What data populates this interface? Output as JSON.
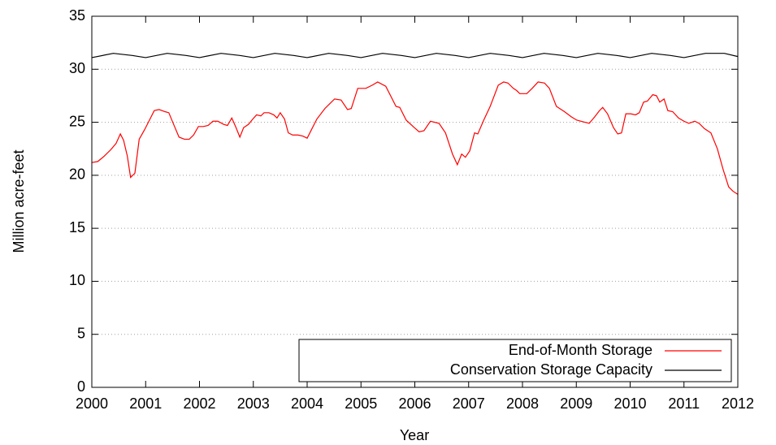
{
  "chart_data": {
    "type": "line",
    "x_label": "Year",
    "y_label": "Million acre-feet",
    "xlim": [
      2000,
      2012
    ],
    "ylim": [
      0,
      35
    ],
    "xticks": [
      2000,
      2001,
      2002,
      2003,
      2004,
      2005,
      2006,
      2007,
      2008,
      2009,
      2010,
      2011,
      2012
    ],
    "yticks": [
      0,
      5,
      10,
      15,
      20,
      25,
      30,
      35
    ],
    "grid": true,
    "legend": "bottom-right",
    "series": [
      {
        "name": "End-of-Month Storage",
        "color": "#ff0000",
        "x": [
          2000.0,
          2000.11,
          2000.23,
          2000.35,
          2000.45,
          2000.53,
          2000.59,
          2000.66,
          2000.72,
          2000.8,
          2000.88,
          2000.98,
          2001.09,
          2001.16,
          2001.25,
          2001.36,
          2001.43,
          2001.52,
          2001.62,
          2001.72,
          2001.81,
          2001.89,
          2001.98,
          2002.07,
          2002.16,
          2002.25,
          2002.34,
          2002.45,
          2002.52,
          2002.6,
          2002.67,
          2002.75,
          2002.82,
          2002.91,
          2002.99,
          2003.06,
          2003.14,
          2003.2,
          2003.29,
          2003.38,
          2003.44,
          2003.5,
          2003.58,
          2003.65,
          2003.73,
          2003.83,
          2003.92,
          2004.0,
          2004.18,
          2004.33,
          2004.51,
          2004.63,
          2004.75,
          2004.82,
          2004.94,
          2005.09,
          2005.21,
          2005.31,
          2005.46,
          2005.57,
          2005.65,
          2005.72,
          2005.84,
          2005.99,
          2006.08,
          2006.17,
          2006.29,
          2006.45,
          2006.57,
          2006.7,
          2006.79,
          2006.87,
          2006.94,
          2007.02,
          2007.11,
          2007.17,
          2007.28,
          2007.4,
          2007.55,
          2007.65,
          2007.73,
          2007.83,
          2007.89,
          2007.95,
          2008.08,
          2008.18,
          2008.29,
          2008.41,
          2008.5,
          2008.63,
          2008.78,
          2008.91,
          2009.01,
          2009.16,
          2009.24,
          2009.34,
          2009.43,
          2009.49,
          2009.58,
          2009.69,
          2009.77,
          2009.84,
          2009.92,
          2010.01,
          2010.1,
          2010.17,
          2010.25,
          2010.32,
          2010.42,
          2010.49,
          2010.55,
          2010.63,
          2010.7,
          2010.79,
          2010.9,
          2011.0,
          2011.09,
          2011.2,
          2011.28,
          2011.38,
          2011.5,
          2011.62,
          2011.73,
          2011.83,
          2011.91,
          2012.0
        ],
        "values": [
          21.2,
          21.3,
          21.8,
          22.4,
          23.0,
          23.9,
          23.3,
          21.8,
          19.8,
          20.2,
          23.4,
          24.3,
          25.4,
          26.1,
          26.2,
          26.0,
          25.9,
          24.8,
          23.6,
          23.4,
          23.4,
          23.8,
          24.6,
          24.6,
          24.7,
          25.1,
          25.1,
          24.8,
          24.7,
          25.4,
          24.6,
          23.6,
          24.5,
          24.8,
          25.3,
          25.7,
          25.6,
          25.9,
          25.9,
          25.7,
          25.4,
          25.9,
          25.3,
          24.0,
          23.8,
          23.8,
          23.7,
          23.5,
          25.3,
          26.3,
          27.2,
          27.1,
          26.2,
          26.3,
          28.2,
          28.2,
          28.5,
          28.8,
          28.4,
          27.3,
          26.5,
          26.4,
          25.2,
          24.5,
          24.1,
          24.2,
          25.1,
          24.9,
          24.0,
          22.0,
          21.0,
          22.0,
          21.7,
          22.3,
          24.0,
          23.9,
          25.2,
          26.5,
          28.5,
          28.8,
          28.7,
          28.2,
          28.0,
          27.7,
          27.7,
          28.2,
          28.8,
          28.7,
          28.2,
          26.5,
          26.0,
          25.5,
          25.2,
          25.0,
          24.9,
          25.5,
          26.1,
          26.4,
          25.8,
          24.5,
          23.9,
          24.0,
          25.8,
          25.8,
          25.7,
          25.9,
          26.9,
          27.0,
          27.6,
          27.5,
          26.9,
          27.2,
          26.1,
          26.0,
          25.4,
          25.1,
          24.9,
          25.1,
          24.9,
          24.4,
          24.0,
          22.5,
          20.5,
          18.9,
          18.5,
          18.2
        ]
      },
      {
        "name": "Conservation Storage Capacity",
        "color": "#000000",
        "x": [
          2000.0,
          2000.4,
          2000.75,
          2001.0,
          2001.4,
          2001.75,
          2002.0,
          2002.4,
          2002.75,
          2003.0,
          2003.4,
          2003.75,
          2004.0,
          2004.4,
          2004.75,
          2005.0,
          2005.4,
          2005.75,
          2006.0,
          2006.4,
          2006.75,
          2007.0,
          2007.4,
          2007.75,
          2008.0,
          2008.4,
          2008.75,
          2009.0,
          2009.4,
          2009.75,
          2010.0,
          2010.4,
          2010.75,
          2011.0,
          2011.4,
          2011.75,
          2012.0
        ],
        "values": [
          31.1,
          31.5,
          31.3,
          31.1,
          31.5,
          31.3,
          31.1,
          31.5,
          31.3,
          31.1,
          31.5,
          31.3,
          31.1,
          31.5,
          31.3,
          31.1,
          31.5,
          31.3,
          31.1,
          31.5,
          31.3,
          31.1,
          31.5,
          31.3,
          31.1,
          31.5,
          31.3,
          31.1,
          31.5,
          31.3,
          31.1,
          31.5,
          31.3,
          31.1,
          31.5,
          31.5,
          31.2
        ]
      }
    ]
  }
}
